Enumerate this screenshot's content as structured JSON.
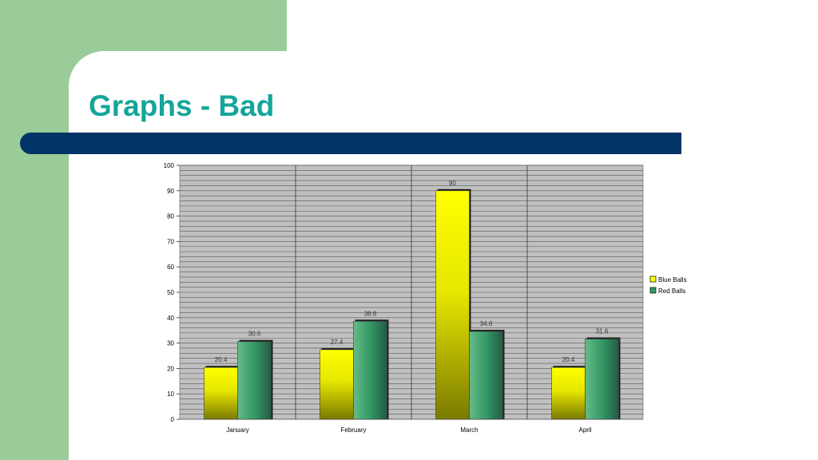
{
  "slide": {
    "title": "Graphs - Bad"
  },
  "colors": {
    "side_block": "#99cc99",
    "title_text": "#15a59a",
    "title_bar": "#003366",
    "plot_background": "#c0c0c0",
    "series_1": "#ffff00",
    "series_2": "#339966"
  },
  "chart_data": {
    "type": "bar",
    "categories": [
      "January",
      "February",
      "March",
      "April"
    ],
    "series": [
      {
        "name": "Blue Balls",
        "values": [
          20.4,
          27.4,
          90,
          20.4
        ]
      },
      {
        "name": "Red Balls",
        "values": [
          30.6,
          38.6,
          34.6,
          31.6
        ]
      }
    ],
    "title": "",
    "xlabel": "",
    "ylabel": "",
    "ylim": [
      0,
      100
    ],
    "yticks": [
      0,
      10,
      20,
      30,
      40,
      50,
      60,
      70,
      80,
      90,
      100
    ],
    "grid": true,
    "minor_gridlines_per_major": 5,
    "legend_position": "right",
    "data_labels": true,
    "style": "3d-gradient-bars"
  }
}
